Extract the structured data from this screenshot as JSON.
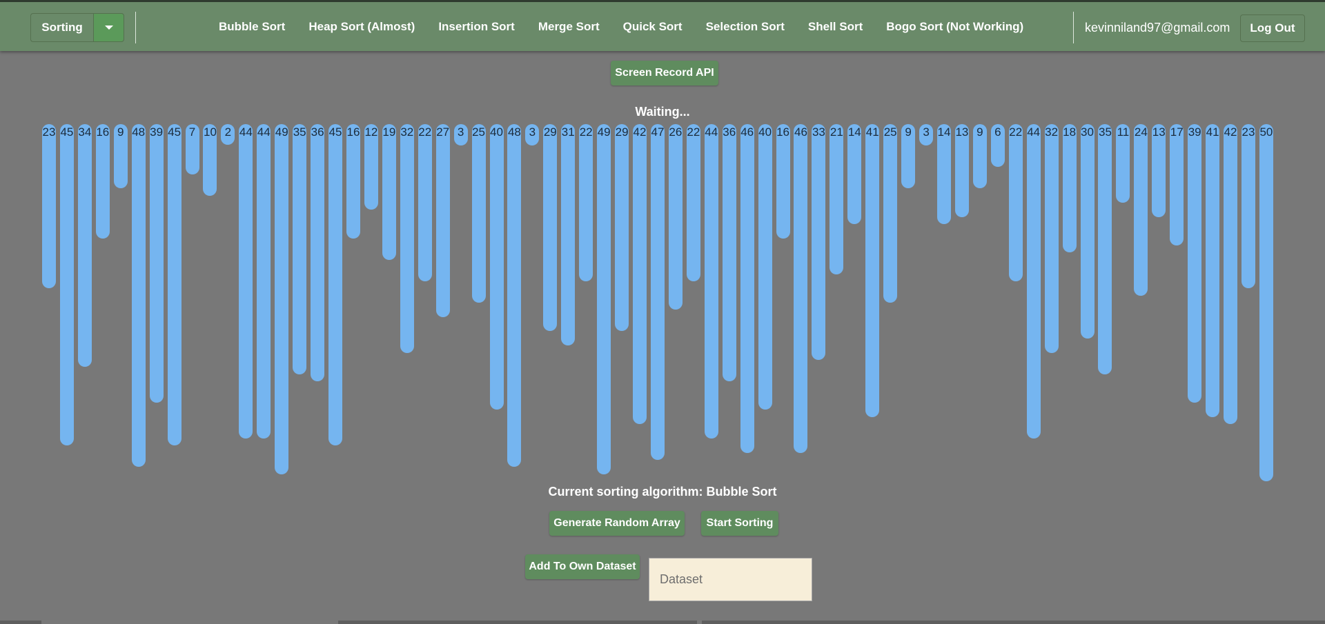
{
  "header": {
    "dropdown_label": "Sorting",
    "nav": [
      "Bubble Sort",
      "Heap Sort (Almost)",
      "Insertion Sort",
      "Merge Sort",
      "Quick Sort",
      "Selection Sort",
      "Shell Sort",
      "Bogo Sort (Not Working)"
    ],
    "user_email": "kevinniland97@gmail.com",
    "logout_label": "Log Out"
  },
  "screen_record_label": "Screen Record API",
  "status_text": "Waiting...",
  "array_values": [
    23,
    45,
    34,
    16,
    9,
    48,
    39,
    45,
    7,
    10,
    2,
    44,
    44,
    49,
    35,
    36,
    45,
    16,
    12,
    19,
    32,
    22,
    27,
    3,
    25,
    40,
    48,
    3,
    29,
    31,
    22,
    49,
    29,
    42,
    47,
    26,
    22,
    44,
    36,
    46,
    40,
    16,
    46,
    33,
    21,
    14,
    41,
    25,
    9,
    3,
    14,
    13,
    9,
    6,
    22,
    44,
    32,
    18,
    30,
    35,
    11,
    24,
    13,
    17,
    39,
    41,
    42,
    23,
    50
  ],
  "current_algorithm_text": "Current sorting algorithm: Bubble Sort",
  "buttons": {
    "generate": "Generate Random Array",
    "start": "Start Sorting",
    "add_dataset": "Add To Own Dataset"
  },
  "dataset_input": {
    "value": "",
    "placeholder": "Dataset"
  },
  "colors": {
    "header": "#6a8a69",
    "bar": "#75b5f0",
    "button": "#5f8c5e",
    "background": "#787878"
  }
}
